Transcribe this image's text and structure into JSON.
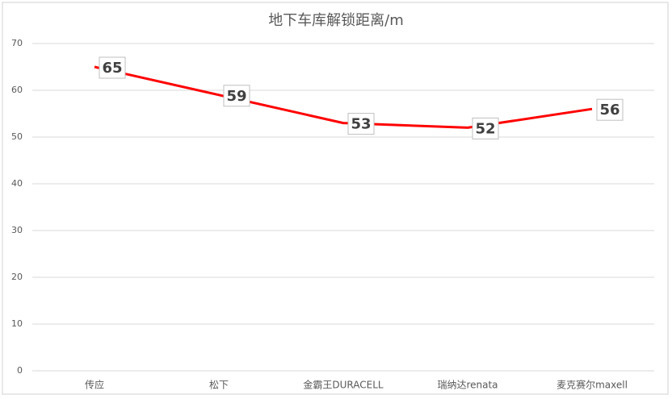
{
  "chart_data": {
    "type": "line",
    "title": "地下车库解锁距离/m",
    "categories": [
      "传应",
      "松下",
      "金霸王DURACELL",
      "瑞纳达renata",
      "麦克赛尔maxell"
    ],
    "values": [
      65,
      59,
      53,
      52,
      56
    ],
    "color": "#ff0000",
    "ylim": [
      0,
      70
    ],
    "yticks": [
      0,
      10,
      20,
      30,
      40,
      50,
      60,
      70
    ],
    "grid": true
  }
}
